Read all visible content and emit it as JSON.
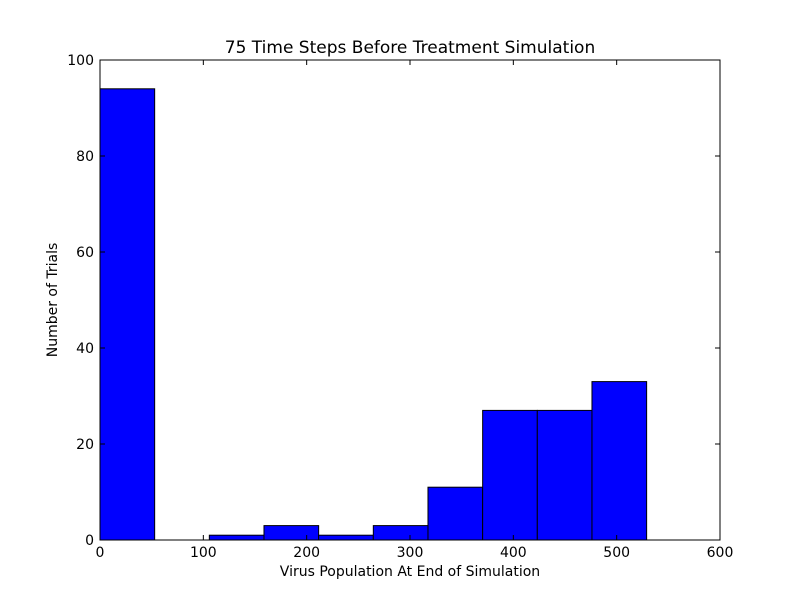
{
  "chart_data": {
    "type": "bar",
    "title": "75 Time Steps Before Treatment Simulation",
    "xlabel": "Virus Population At End of Simulation",
    "ylabel": "Number of Trials",
    "xlim": [
      0,
      600
    ],
    "ylim": [
      0,
      100
    ],
    "xticks": [
      0,
      100,
      200,
      300,
      400,
      500,
      600
    ],
    "yticks": [
      0,
      20,
      40,
      60,
      80,
      100
    ],
    "bins": [
      {
        "x0": 0,
        "x1": 52.9,
        "value": 94
      },
      {
        "x0": 52.9,
        "x1": 105.8,
        "value": 0
      },
      {
        "x0": 105.8,
        "x1": 158.7,
        "value": 1
      },
      {
        "x0": 158.7,
        "x1": 211.6,
        "value": 3
      },
      {
        "x0": 211.6,
        "x1": 264.5,
        "value": 1
      },
      {
        "x0": 264.5,
        "x1": 317.4,
        "value": 3
      },
      {
        "x0": 317.4,
        "x1": 370.3,
        "value": 11
      },
      {
        "x0": 370.3,
        "x1": 423.2,
        "value": 27
      },
      {
        "x0": 423.2,
        "x1": 476.1,
        "value": 27
      },
      {
        "x0": 476.1,
        "x1": 529.0,
        "value": 33
      }
    ],
    "bar_color": "#0000ff",
    "edge_color": "#000000",
    "grid": false
  }
}
